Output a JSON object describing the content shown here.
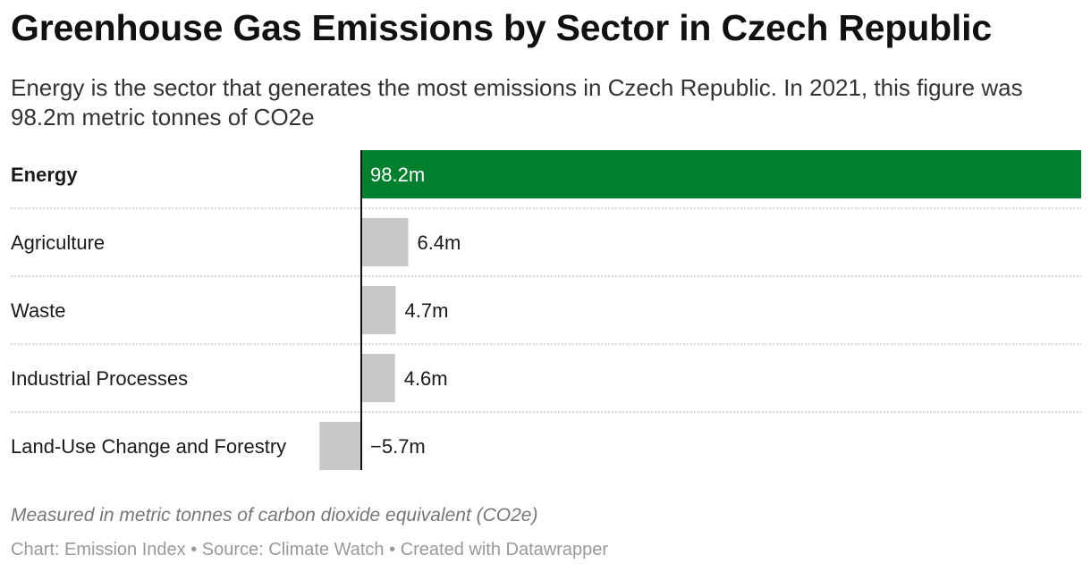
{
  "header": {
    "title": "Greenhouse Gas Emissions by Sector in Czech Republic",
    "subtitle": "Energy is the sector that generates the most emissions in Czech Republic. In 2021, this figure was 98.2m metric tonnes of CO2e"
  },
  "footer": {
    "note": "Measured in metric tonnes of carbon dioxide equivalent (CO2e)",
    "credit_chart": "Chart: Emission Index",
    "credit_source": "Source: Climate Watch",
    "credit_tool": "Created with Datawrapper",
    "separator": "•"
  },
  "colors": {
    "highlight": "#00802f",
    "default_bar": "#c8c8c8",
    "axis": "#111111",
    "divider": "#cccccc"
  },
  "chart_data": {
    "type": "bar",
    "orientation": "horizontal",
    "title": "Greenhouse Gas Emissions by Sector in Czech Republic",
    "unit": "m metric tonnes CO2e",
    "highlighted": "Energy",
    "categories": [
      "Energy",
      "Agriculture",
      "Waste",
      "Industrial Processes",
      "Land-Use Change and Forestry"
    ],
    "values": [
      98.2,
      6.4,
      4.7,
      4.6,
      -5.7
    ],
    "labels": [
      "98.2m",
      "6.4m",
      "4.7m",
      "4.6m",
      "−5.7m"
    ],
    "xlim": [
      -5.7,
      98.2
    ],
    "grid": false
  }
}
